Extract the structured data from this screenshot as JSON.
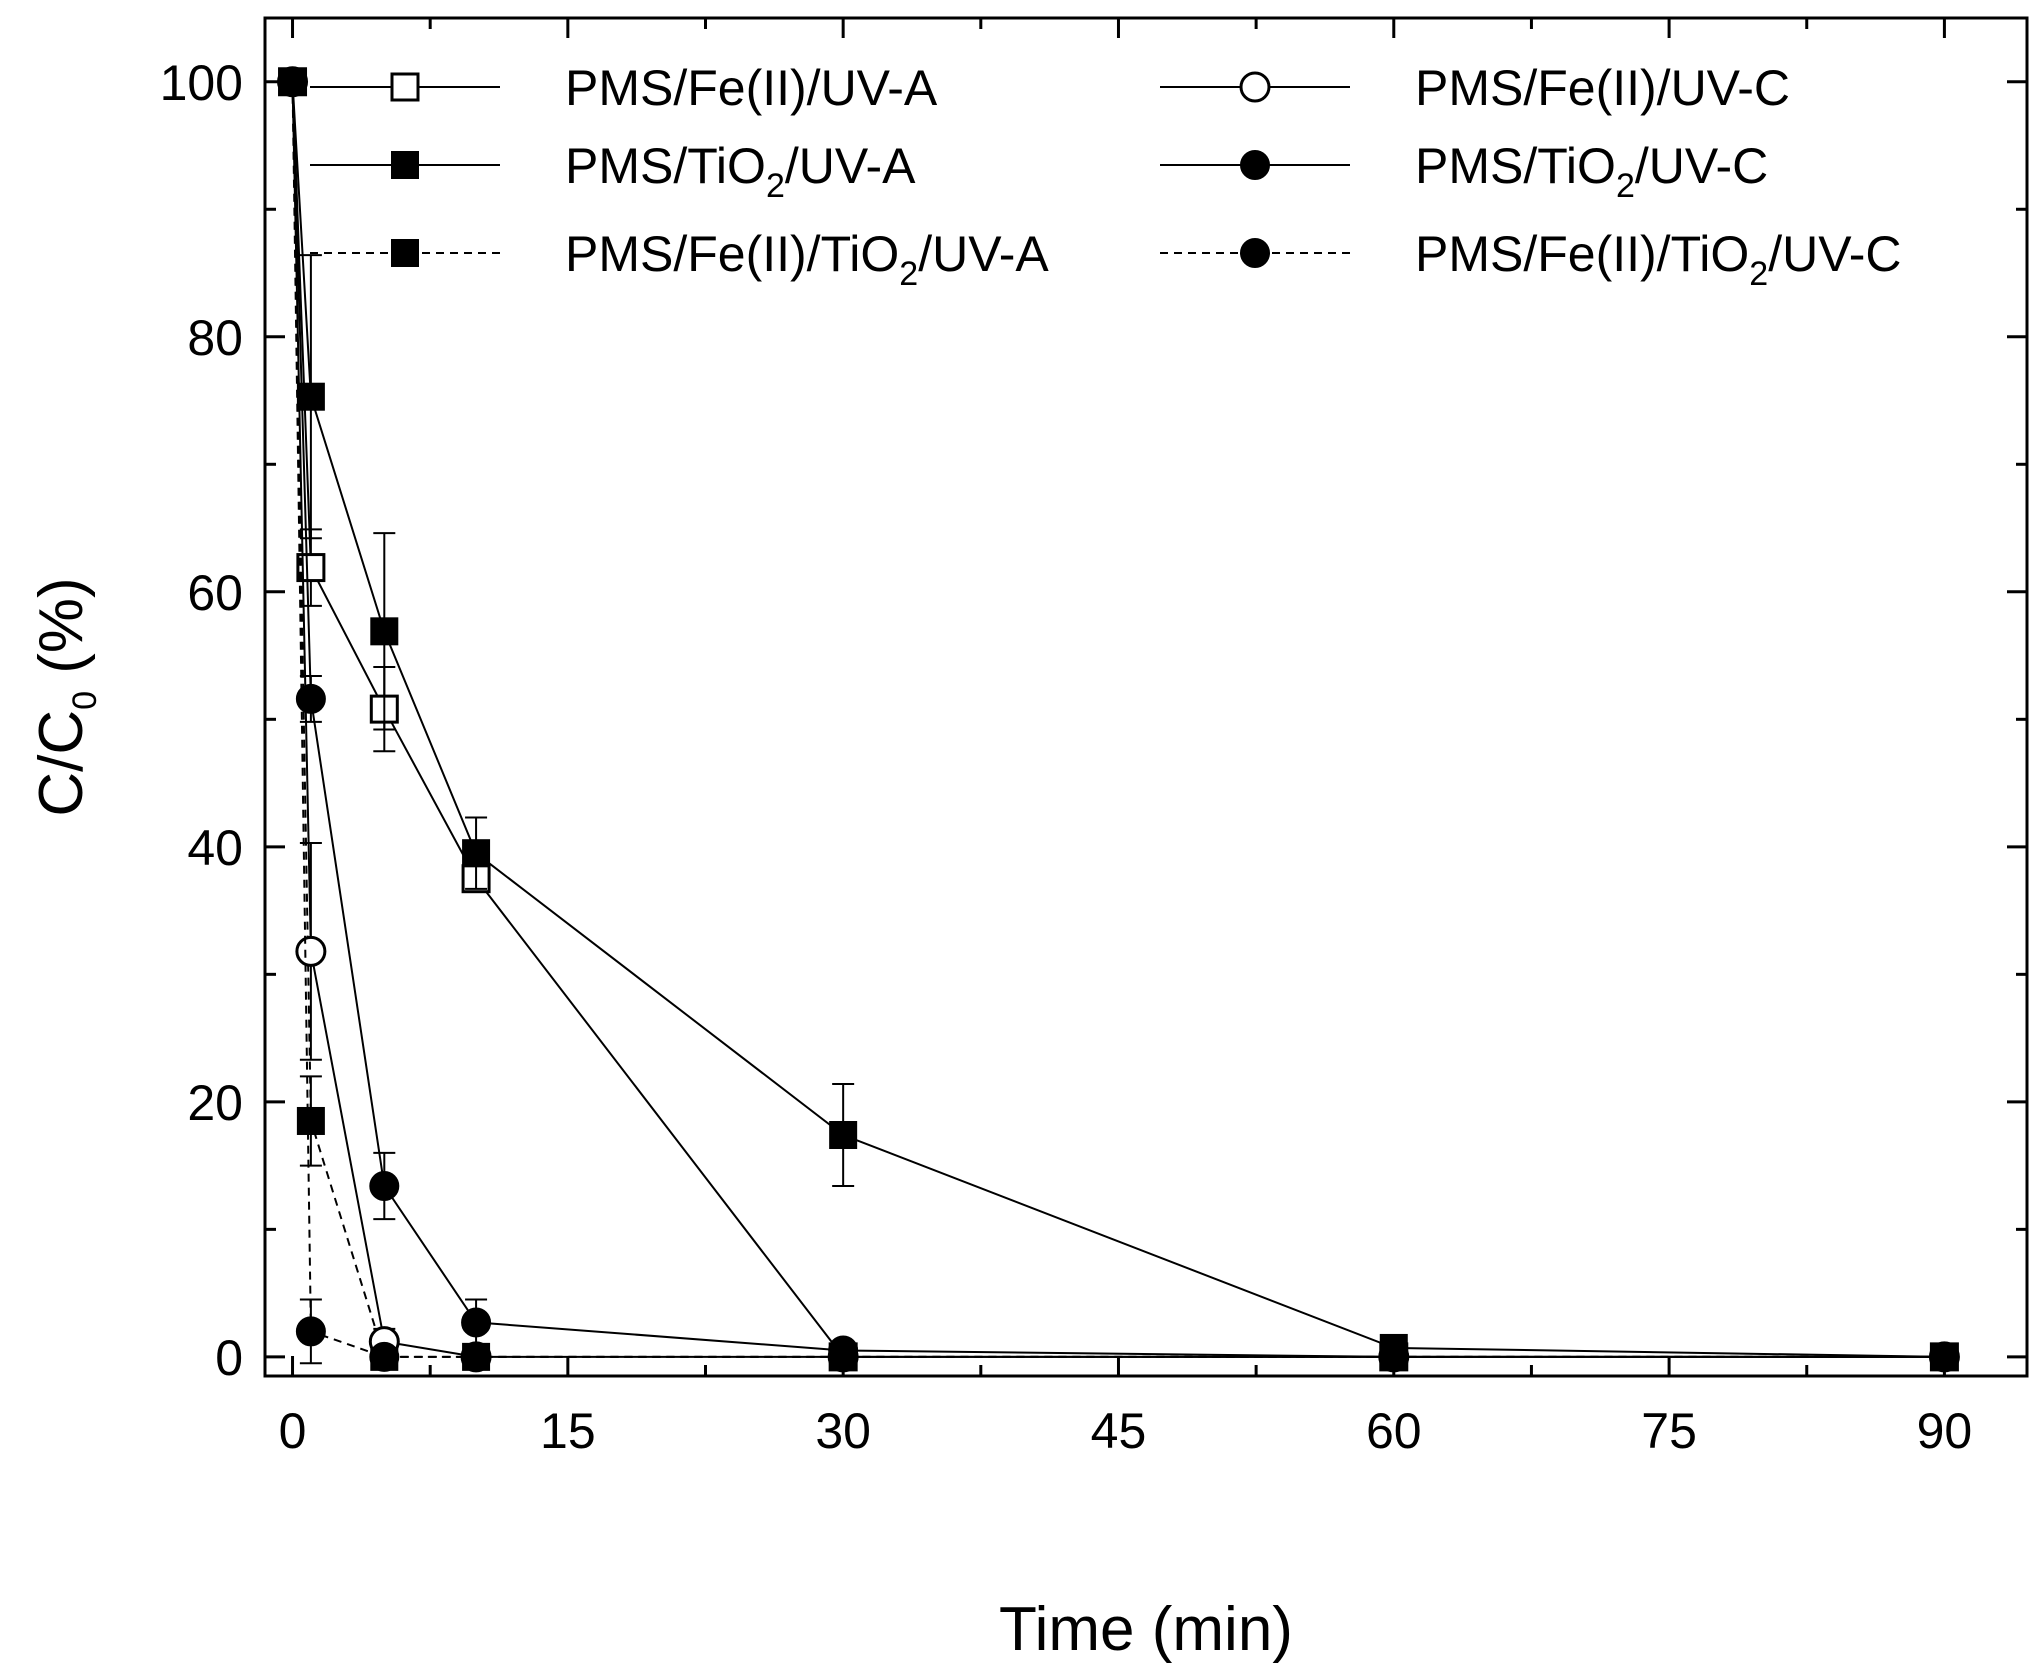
{
  "chart_data": {
    "type": "line",
    "xlabel": "Time (min)",
    "ylabel": {
      "base": "C/C",
      "sub": "0",
      "suffix": " (%)"
    },
    "xlim": [
      -1.5,
      94.5
    ],
    "ylim": [
      -1.5,
      105
    ],
    "xticks": [
      0,
      15,
      30,
      45,
      60,
      75,
      90
    ],
    "xticks_minor": [
      7.5,
      22.5,
      37.5,
      52.5,
      67.5,
      82.5
    ],
    "yticks": [
      0,
      20,
      40,
      60,
      80,
      100
    ],
    "yticks_minor": [
      10,
      30,
      50,
      70,
      90
    ],
    "grid": false,
    "legend_placement": "top",
    "series": [
      {
        "name": "PMS/Fe(II)/UV-A",
        "label": {
          "pre": "PMS/Fe(II)/UV-A",
          "sub": "",
          "post": ""
        },
        "marker": "square-open",
        "dash": "solid",
        "x": [
          0,
          1,
          5,
          10,
          30,
          60,
          90
        ],
        "y": [
          100,
          61.9,
          50.8,
          37.5,
          0,
          0,
          0
        ],
        "err": [
          0,
          3.0,
          3.3,
          0,
          0,
          0,
          0
        ]
      },
      {
        "name": "PMS/TiO2/UV-A",
        "label": {
          "pre": "PMS/TiO",
          "sub": "2",
          "post": "/UV-A"
        },
        "marker": "square-filled",
        "dash": "solid",
        "x": [
          0,
          1,
          5,
          10,
          30,
          60,
          90
        ],
        "y": [
          100,
          75.3,
          56.9,
          39.5,
          17.4,
          0.7,
          0
        ],
        "err": [
          0,
          11.1,
          7.7,
          2.8,
          4.0,
          0,
          0
        ]
      },
      {
        "name": "PMS/Fe(II)/TiO2/UV-A",
        "label": {
          "pre": "PMS/Fe(II)/TiO",
          "sub": "2",
          "post": "/UV-A"
        },
        "marker": "square-filled",
        "dash": "dashed",
        "x": [
          0,
          1,
          5,
          10,
          30,
          60,
          90
        ],
        "y": [
          100,
          18.5,
          0,
          0,
          0,
          0,
          0
        ],
        "err": [
          0,
          3.5,
          0,
          0,
          0,
          0,
          0
        ]
      },
      {
        "name": "PMS/Fe(II)/UV-C",
        "label": {
          "pre": "PMS/Fe(II)/UV-C",
          "sub": "",
          "post": ""
        },
        "marker": "circle-open",
        "dash": "solid",
        "x": [
          0,
          1,
          5,
          10,
          30,
          60,
          90
        ],
        "y": [
          100,
          31.8,
          1.2,
          0,
          0,
          0,
          0
        ],
        "err": [
          0,
          8.5,
          1.0,
          0,
          0,
          0,
          0
        ]
      },
      {
        "name": "PMS/TiO2/UV-C",
        "label": {
          "pre": "PMS/TiO",
          "sub": "2",
          "post": "/UV-C"
        },
        "marker": "circle-filled",
        "dash": "solid",
        "x": [
          0,
          1,
          5,
          10,
          30,
          60,
          90
        ],
        "y": [
          100,
          51.6,
          13.4,
          2.7,
          0.5,
          0,
          0
        ],
        "err": [
          0,
          1.8,
          2.6,
          1.8,
          0,
          0,
          0
        ]
      },
      {
        "name": "PMS/Fe(II)/TiO2/UV-C",
        "label": {
          "pre": "PMS/Fe(II)/TiO",
          "sub": "2",
          "post": "/UV-C"
        },
        "marker": "circle-filled",
        "dash": "dashed",
        "x": [
          0,
          1,
          5,
          10,
          30,
          60,
          90
        ],
        "y": [
          100,
          2.0,
          0,
          0,
          0,
          0,
          0
        ],
        "err": [
          0,
          2.5,
          0,
          0,
          0,
          0,
          0
        ]
      }
    ]
  }
}
